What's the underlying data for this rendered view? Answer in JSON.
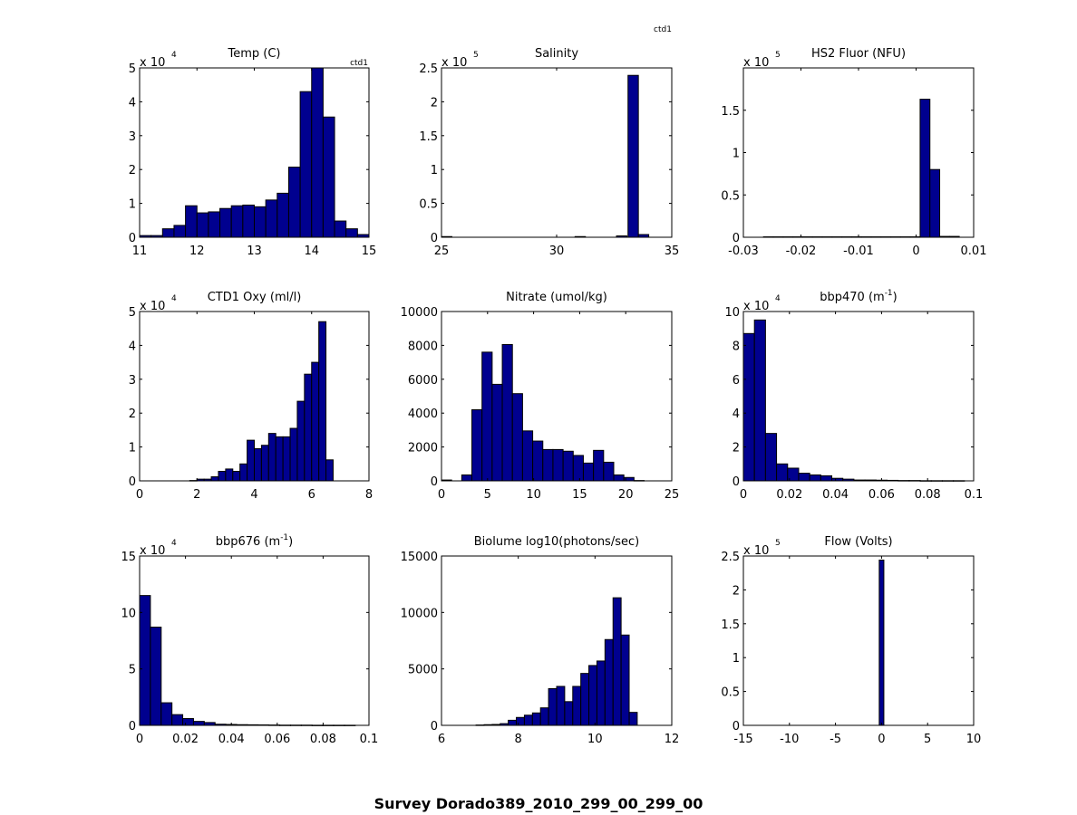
{
  "figure_title": "Survey Dorado389_2010_299_00_299_00",
  "annotations": {
    "header_tag": "ctd1"
  },
  "chart_data": [
    {
      "type": "bar",
      "title": "Temp (C)",
      "title_sup": "",
      "title_suffix": "",
      "corner_tag": "ctd1",
      "x_min": 11,
      "bin_width": 0.2,
      "values": [
        0.05,
        0.05,
        0.25,
        0.35,
        0.93,
        0.72,
        0.75,
        0.85,
        0.93,
        0.95,
        0.9,
        1.1,
        1.3,
        2.07,
        4.3,
        5.0,
        3.55,
        0.48,
        0.25,
        0.08
      ],
      "xlim": [
        11,
        15
      ],
      "ylim": [
        0,
        5
      ],
      "xticks": [
        11,
        12,
        13,
        14,
        15
      ],
      "xtick_labels": [
        "11",
        "12",
        "13",
        "14",
        "15"
      ],
      "yticks": [
        0,
        1,
        2,
        3,
        4,
        5
      ],
      "ytick_labels": [
        "0",
        "1",
        "2",
        "3",
        "4",
        "5"
      ],
      "exponent_base": "x 10",
      "exponent_power": "4"
    },
    {
      "type": "bar",
      "title": "Salinity",
      "title_sup": "",
      "title_suffix": "",
      "corner_tag": "",
      "x_min": 25.0,
      "bin_width": 0.45,
      "values": [
        0.005,
        0.005,
        0.005,
        0.005,
        0.005,
        0.005,
        0.005,
        0.005,
        0.005,
        0.005,
        0.005,
        0.005,
        0.005,
        0.005,
        0.005,
        0.005,
        0.005,
        0.005,
        0.005,
        0.005,
        0.005,
        0.005,
        0.005,
        0.005,
        0.005,
        0.005,
        0.005,
        0.005,
        0.005,
        0.005,
        0.005,
        0.005,
        0.005,
        0.005,
        0.005,
        0.005,
        0.005,
        0.005,
        0.005,
        0.005
      ],
      "bars": [
        [
          25.0,
          0.01
        ],
        [
          30.8,
          0.01
        ],
        [
          32.6,
          0.02
        ],
        [
          33.1,
          2.39
        ],
        [
          33.55,
          0.04
        ]
      ],
      "xlim": [
        25,
        35
      ],
      "ylim": [
        0,
        2.5
      ],
      "xticks": [
        25,
        30,
        35
      ],
      "xtick_labels": [
        "25",
        "30",
        "35"
      ],
      "yticks": [
        0,
        0.5,
        1,
        1.5,
        2,
        2.5
      ],
      "ytick_labels": [
        "0",
        "0.5",
        "1",
        "1.5",
        "2",
        "2.5"
      ],
      "exponent_base": "x 10",
      "exponent_power": "5"
    },
    {
      "type": "bar",
      "title": "HS2 Fluor (NFU)",
      "title_sup": "",
      "title_suffix": "",
      "corner_tag": "",
      "x_min": -0.0265,
      "bin_width": 0.0017,
      "values": [
        0.005,
        0.005,
        0.005,
        0.005,
        0.005,
        0.005,
        0.005,
        0.005,
        0.005,
        0.005,
        0.005,
        0.005,
        0.005,
        0.005,
        0.005,
        0.005,
        1.63,
        0.8,
        0.01,
        0.01
      ],
      "xlim": [
        -0.03,
        0.01
      ],
      "ylim": [
        0,
        2
      ],
      "xticks": [
        -0.03,
        -0.02,
        -0.01,
        0,
        0.01
      ],
      "xtick_labels": [
        "-0.03",
        "-0.02",
        "-0.01",
        "0",
        "0.01"
      ],
      "yticks": [
        0,
        0.5,
        1,
        1.5
      ],
      "ytick_labels": [
        "0",
        "0.5",
        "1",
        "1.5"
      ],
      "exponent_base": "x 10",
      "exponent_power": "5"
    },
    {
      "type": "bar",
      "title": "CTD1 Oxy (ml/l)",
      "title_sup": "",
      "title_suffix": "",
      "corner_tag": "",
      "x_min": 0,
      "bin_width": 0.25,
      "values": [
        0,
        0,
        0,
        0,
        0,
        0,
        0,
        0.01,
        0.05,
        0.05,
        0.12,
        0.28,
        0.35,
        0.28,
        0.5,
        1.2,
        0.95,
        1.05,
        1.4,
        1.3,
        1.3,
        1.55,
        2.35,
        3.15,
        3.5,
        4.7,
        0.62
      ],
      "xlim": [
        0,
        8
      ],
      "ylim": [
        0,
        5
      ],
      "xticks": [
        0,
        2,
        4,
        6,
        8
      ],
      "xtick_labels": [
        "0",
        "2",
        "4",
        "6",
        "8"
      ],
      "yticks": [
        0,
        1,
        2,
        3,
        4,
        5
      ],
      "ytick_labels": [
        "0",
        "1",
        "2",
        "3",
        "4",
        "5"
      ],
      "exponent_base": "x 10",
      "exponent_power": "4"
    },
    {
      "type": "bar",
      "title": "Nitrate (umol/kg)",
      "title_sup": "",
      "title_suffix": "",
      "corner_tag": "",
      "x_min": 0,
      "bin_width": 1.1,
      "values": [
        50,
        0,
        350,
        4200,
        7600,
        5700,
        8050,
        5150,
        2950,
        2350,
        1850,
        1850,
        1750,
        1500,
        1050,
        1800,
        1100,
        350,
        200,
        20
      ],
      "xlim": [
        0,
        25
      ],
      "ylim": [
        0,
        10000
      ],
      "xticks": [
        0,
        5,
        10,
        15,
        20,
        25
      ],
      "xtick_labels": [
        "0",
        "5",
        "10",
        "15",
        "20",
        "25"
      ],
      "yticks": [
        0,
        2000,
        4000,
        6000,
        8000,
        10000
      ],
      "ytick_labels": [
        "0",
        "2000",
        "4000",
        "6000",
        "8000",
        "10000"
      ],
      "exponent_base": "",
      "exponent_power": ""
    },
    {
      "type": "bar",
      "title": "bbp470 (m",
      "title_sup": "-1",
      "title_suffix": ")",
      "corner_tag": "",
      "x_min": 0,
      "bin_width": 0.0048,
      "values": [
        8.7,
        9.5,
        2.8,
        1.0,
        0.75,
        0.45,
        0.35,
        0.3,
        0.15,
        0.1,
        0.05,
        0.05,
        0.04,
        0.03,
        0.02,
        0.02,
        0.01,
        0.01,
        0.01,
        0.01
      ],
      "xlim": [
        0,
        0.1
      ],
      "ylim": [
        0,
        10
      ],
      "xticks": [
        0,
        0.02,
        0.04,
        0.06,
        0.08,
        0.1
      ],
      "xtick_labels": [
        "0",
        "0.02",
        "0.04",
        "0.06",
        "0.08",
        "0.1"
      ],
      "yticks": [
        0,
        2,
        4,
        6,
        8,
        10
      ],
      "ytick_labels": [
        "0",
        "2",
        "4",
        "6",
        "8",
        "10"
      ],
      "exponent_base": "x 10",
      "exponent_power": "4"
    },
    {
      "type": "bar",
      "title": "bbp676 (m",
      "title_sup": "-1",
      "title_suffix": ")",
      "corner_tag": "",
      "x_min": 0,
      "bin_width": 0.0047,
      "values": [
        11.5,
        8.7,
        2.0,
        0.95,
        0.6,
        0.35,
        0.25,
        0.1,
        0.08,
        0.06,
        0.05,
        0.04,
        0.03,
        0.02,
        0.02,
        0.02,
        0.01,
        0.01,
        0.01,
        0.01
      ],
      "xlim": [
        0,
        0.1
      ],
      "ylim": [
        0,
        15
      ],
      "xticks": [
        0,
        0.02,
        0.04,
        0.06,
        0.08,
        0.1
      ],
      "xtick_labels": [
        "0",
        "0.02",
        "0.04",
        "0.06",
        "0.08",
        "0.1"
      ],
      "yticks": [
        0,
        5,
        10,
        15
      ],
      "ytick_labels": [
        "0",
        "5",
        "10",
        "15"
      ],
      "exponent_base": "x 10",
      "exponent_power": "4"
    },
    {
      "type": "bar",
      "title": "Biolume log10(photons/sec)",
      "title_sup": "",
      "title_suffix": "",
      "corner_tag": "",
      "x_min": 6.9,
      "bin_width": 0.21,
      "values": [
        30,
        60,
        80,
        150,
        450,
        700,
        900,
        1100,
        1550,
        3250,
        3450,
        2100,
        3450,
        4600,
        5300,
        5700,
        7600,
        11300,
        8000,
        1150
      ],
      "xlim": [
        6,
        12
      ],
      "ylim": [
        0,
        15000
      ],
      "xticks": [
        6,
        8,
        10,
        12
      ],
      "xtick_labels": [
        "6",
        "8",
        "10",
        "12"
      ],
      "yticks": [
        0,
        5000,
        10000,
        15000
      ],
      "ytick_labels": [
        "0",
        "5000",
        "10000",
        "15000"
      ],
      "exponent_base": "",
      "exponent_power": ""
    },
    {
      "type": "bar",
      "title": "Flow (Volts)",
      "title_sup": "",
      "title_suffix": "",
      "corner_tag": "",
      "x_min": -0.25,
      "bin_width": 0.5,
      "values": [
        2.44
      ],
      "xlim": [
        -15,
        10
      ],
      "ylim": [
        0,
        2.5
      ],
      "xticks": [
        -15,
        -10,
        -5,
        0,
        5,
        10
      ],
      "xtick_labels": [
        "-15",
        "-10",
        "-5",
        "0",
        "5",
        "10"
      ],
      "yticks": [
        0,
        0.5,
        1,
        1.5,
        2,
        2.5
      ],
      "ytick_labels": [
        "0",
        "0.5",
        "1",
        "1.5",
        "2",
        "2.5"
      ],
      "exponent_base": "x 10",
      "exponent_power": "5"
    }
  ]
}
